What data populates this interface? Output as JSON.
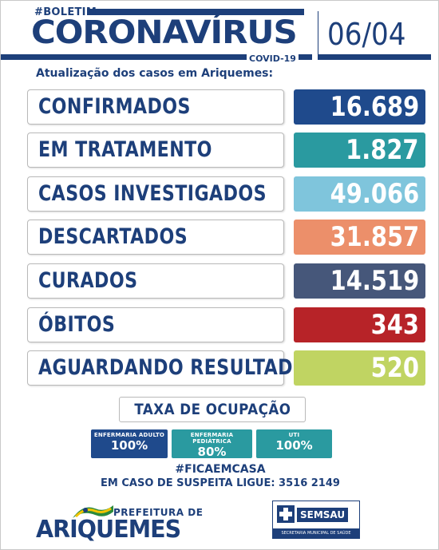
{
  "header": {
    "hashtag": "#BOLETIM",
    "title": "CORONAVÍRUS",
    "tag": "COVID-19",
    "date": "06/04",
    "subtitle": "Atualização dos casos em Ariquemes:"
  },
  "stats": [
    {
      "label": "CONFIRMADOS",
      "value": "16.689",
      "color": "#1f4a8c"
    },
    {
      "label": "EM TRATAMENTO",
      "value": "1.827",
      "color": "#2a9aa0"
    },
    {
      "label": "CASOS INVESTIGADOS",
      "value": "49.066",
      "color": "#7fc5dc"
    },
    {
      "label": "DESCARTADOS",
      "value": "31.857",
      "color": "#ec8f6a"
    },
    {
      "label": "CURADOS",
      "value": "14.519",
      "color": "#46577a"
    },
    {
      "label": "ÓBITOS",
      "value": "343",
      "color": "#b72328"
    },
    {
      "label": "AGUARDANDO RESULTADO",
      "value": "520",
      "color": "#c0d462"
    }
  ],
  "occupancy": {
    "title": "TAXA DE OCUPAÇÃO",
    "items": [
      {
        "label": "ENFERMARIA ADULTO",
        "value": "100%",
        "color": "#1f4a8c"
      },
      {
        "label": "ENFERMARIA PEDIÁTRICA",
        "value": "80%",
        "color": "#2a9aa0"
      },
      {
        "label": "UTI",
        "value": "100%",
        "color": "#2a9aa0"
      }
    ]
  },
  "footer": {
    "hashtag": "#FICAEMCASA",
    "phone_line": "EM CASO DE SUSPEITA LIGUE: 3516 2149",
    "prefeitura": "PREFEITURA DE",
    "city": "ARIQUEMES",
    "semsau": "SEMSAU",
    "semsau_sub": "SECRETARIA MUNICIPAL DE SAÚDE"
  }
}
